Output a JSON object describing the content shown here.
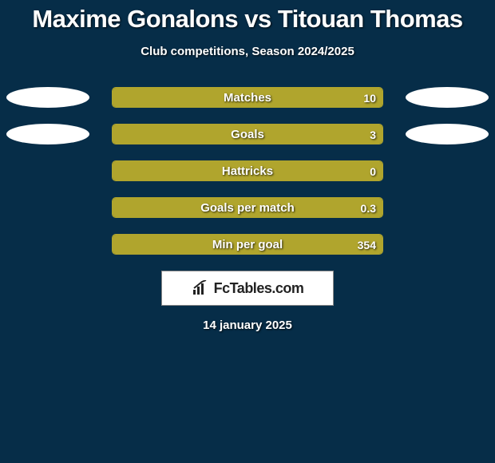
{
  "title": {
    "player_a": "Maxime Gonalons",
    "vs": "vs",
    "player_b": "Titouan Thomas"
  },
  "subtitle": "Club competitions, Season 2024/2025",
  "accent_color": "#b0a52d",
  "background_color": "#062d48",
  "oval_color": "#ffffff",
  "bars": [
    {
      "label": "Matches",
      "value": "10",
      "fill_pct": 100,
      "show_left_oval": true,
      "show_right_oval": true
    },
    {
      "label": "Goals",
      "value": "3",
      "fill_pct": 100,
      "show_left_oval": true,
      "show_right_oval": true
    },
    {
      "label": "Hattricks",
      "value": "0",
      "fill_pct": 100,
      "show_left_oval": false,
      "show_right_oval": false
    },
    {
      "label": "Goals per match",
      "value": "0.3",
      "fill_pct": 100,
      "show_left_oval": false,
      "show_right_oval": false
    },
    {
      "label": "Min per goal",
      "value": "354",
      "fill_pct": 100,
      "show_left_oval": false,
      "show_right_oval": false
    }
  ],
  "logo_text": "FcTables.com",
  "date": "14 january 2025"
}
